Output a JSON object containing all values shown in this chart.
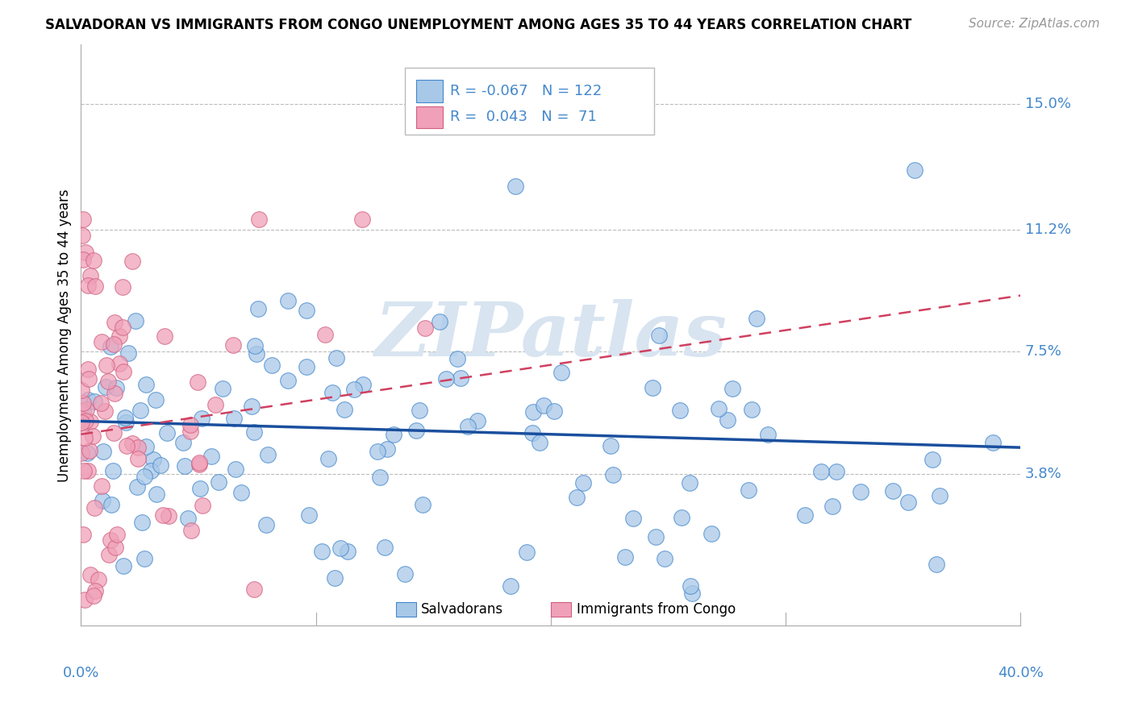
{
  "title": "SALVADORAN VS IMMIGRANTS FROM CONGO UNEMPLOYMENT AMONG AGES 35 TO 44 YEARS CORRELATION CHART",
  "source": "Source: ZipAtlas.com",
  "ylabel": "Unemployment Among Ages 35 to 44 years",
  "ytick_values": [
    0.15,
    0.112,
    0.075,
    0.038
  ],
  "ytick_labels": [
    "15.0%",
    "11.2%",
    "7.5%",
    "3.8%"
  ],
  "xlim": [
    0.0,
    0.4
  ],
  "ylim": [
    -0.008,
    0.168
  ],
  "background_color": "#ffffff",
  "grid_color": "#bbbbbb",
  "legend_R_blue": "-0.067",
  "legend_N_blue": "122",
  "legend_R_pink": " 0.043",
  "legend_N_pink": " 71",
  "blue_fill": "#a8c8e8",
  "blue_edge": "#4488cc",
  "pink_fill": "#f0a0b8",
  "pink_edge": "#d06080",
  "blue_line_color": "#1a4f9e",
  "pink_line_color": "#d04060",
  "title_fontsize": 12,
  "source_fontsize": 11,
  "axis_label_fontsize": 12,
  "tick_label_fontsize": 13,
  "legend_fontsize": 13,
  "watermark_text": "ZIPatlas",
  "watermark_color": "#d8e4f0",
  "blue_trend_start_y": 0.054,
  "blue_trend_end_y": 0.046,
  "pink_trend_start_y": 0.05,
  "pink_trend_end_y": 0.092
}
